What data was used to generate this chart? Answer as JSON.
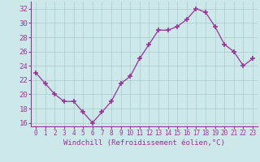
{
  "x": [
    0,
    1,
    2,
    3,
    4,
    5,
    6,
    7,
    8,
    9,
    10,
    11,
    12,
    13,
    14,
    15,
    16,
    17,
    18,
    19,
    20,
    21,
    22,
    23
  ],
  "y": [
    23,
    21.5,
    20,
    19,
    19,
    17.5,
    16,
    17.5,
    19,
    21.5,
    22.5,
    25,
    27,
    29,
    29,
    29.5,
    30.5,
    32,
    31.5,
    29.5,
    27,
    26,
    24,
    25
  ],
  "line_color": "#993399",
  "marker": "+",
  "marker_size": 4,
  "marker_color": "#993399",
  "bg_color": "#cce8e8",
  "grid_color": "#aacccc",
  "xlabel": "Windchill (Refroidissement éolien,°C)",
  "xlabel_color": "#993399",
  "tick_color": "#993399",
  "axis_color": "#993399",
  "ylim": [
    15.5,
    33
  ],
  "xlim": [
    -0.5,
    23.5
  ],
  "yticks": [
    16,
    18,
    20,
    22,
    24,
    26,
    28,
    30,
    32
  ],
  "xticks": [
    0,
    1,
    2,
    3,
    4,
    5,
    6,
    7,
    8,
    9,
    10,
    11,
    12,
    13,
    14,
    15,
    16,
    17,
    18,
    19,
    20,
    21,
    22,
    23
  ],
  "ytick_fontsize": 6.5,
  "xtick_fontsize": 5.5,
  "xlabel_fontsize": 6.5
}
